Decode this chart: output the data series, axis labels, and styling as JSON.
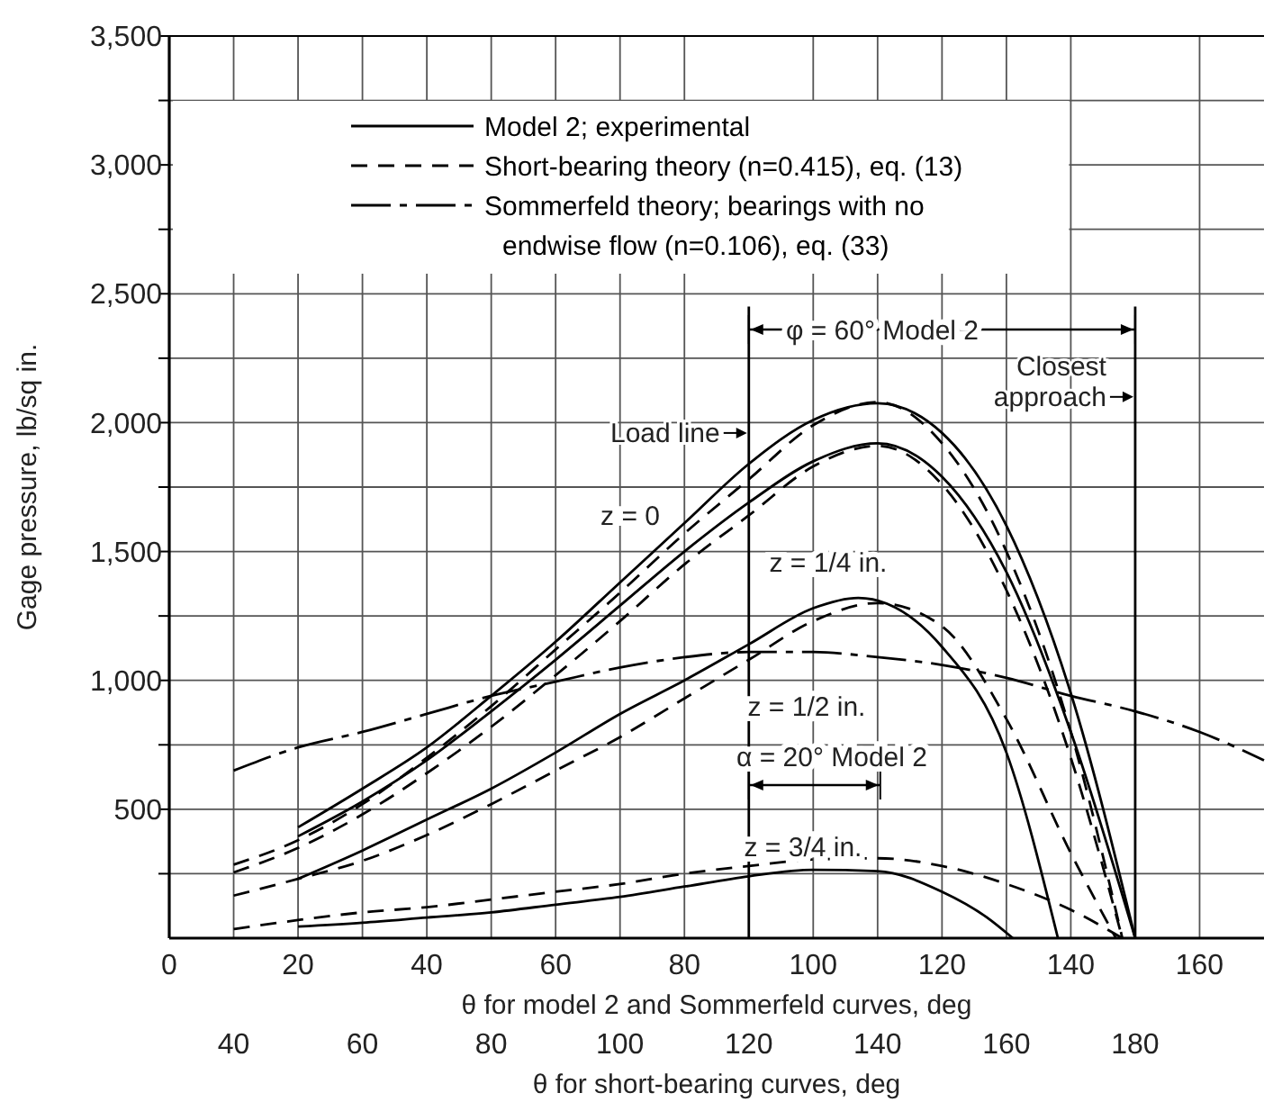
{
  "chart_data": {
    "type": "line",
    "xlabel": "θ for model 2 and Sommerfeld curves, deg",
    "x2label": "θ for short-bearing curves, deg",
    "ylabel": "Gage pressure, lb/sq in.",
    "xlim": [
      0,
      170
    ],
    "xticks": [
      0,
      {
        "value": 10,
        "label": null
      },
      20,
      {
        "value": 30,
        "label": null
      },
      40,
      {
        "value": 50,
        "label": null
      },
      60,
      {
        "value": 70,
        "label": null
      },
      80,
      {
        "value": 90,
        "label": null
      },
      100,
      {
        "value": 110,
        "label": null
      },
      120,
      {
        "value": 130,
        "label": null
      },
      140,
      {
        "value": 150,
        "label": null
      },
      160
    ],
    "x2lim": [
      30,
      200
    ],
    "x2ticks": [
      40,
      60,
      80,
      100,
      120,
      140,
      160,
      180
    ],
    "ylim": [
      0,
      3500
    ],
    "yticks": [
      {
        "value": 250,
        "label": null
      },
      500,
      {
        "value": 750,
        "label": null
      },
      {
        "value": 1000,
        "label": "1,000"
      },
      {
        "value": 1250,
        "label": null
      },
      {
        "value": 1500,
        "label": "1,500"
      },
      {
        "value": 1750,
        "label": null
      },
      {
        "value": 2000,
        "label": "2,000"
      },
      {
        "value": 2250,
        "label": null
      },
      {
        "value": 2500,
        "label": "2,500"
      },
      {
        "value": 2750,
        "label": null
      },
      {
        "value": 3000,
        "label": "3,000"
      },
      {
        "value": 3250,
        "label": null
      },
      {
        "value": 3500,
        "label": "3,500"
      }
    ],
    "grid": true,
    "legend": "top left",
    "marker": "none",
    "series": [
      {
        "name": "Model 2; experimental",
        "color": "#000000",
        "line_style": "solid",
        "x": [
          20,
          30,
          40,
          50,
          60,
          70,
          80,
          90,
          100,
          110,
          120,
          130,
          140,
          150
        ],
        "values": [
          430,
          580,
          740,
          940,
          1150,
          1380,
          1610,
          1840,
          2010,
          2075,
          1960,
          1600,
          950,
          0
        ]
      },
      {
        "color": "#000000",
        "line_style": "solid",
        "x": [
          20,
          30,
          40,
          50,
          60,
          70,
          80,
          90,
          100,
          110,
          120,
          130,
          140,
          150
        ],
        "values": [
          395,
          530,
          690,
          880,
          1080,
          1290,
          1500,
          1690,
          1850,
          1920,
          1790,
          1420,
          800,
          0
        ]
      },
      {
        "color": "#000000",
        "line_style": "solid",
        "x": [
          20,
          30,
          40,
          50,
          60,
          70,
          80,
          90,
          100,
          107,
          120,
          130,
          138
        ],
        "values": [
          230,
          340,
          460,
          580,
          720,
          870,
          1000,
          1140,
          1280,
          1320,
          1130,
          720,
          0
        ]
      },
      {
        "color": "#000000",
        "line_style": "solid",
        "x": [
          20,
          30,
          40,
          50,
          60,
          70,
          80,
          90,
          100,
          110,
          120,
          127,
          131
        ],
        "values": [
          45,
          60,
          80,
          100,
          130,
          160,
          200,
          240,
          265,
          260,
          180,
          80,
          0
        ]
      },
      {
        "name": "Short-bearing theory (n=0.415), eq. (13)",
        "color": "#000000",
        "line_style": "dashed",
        "x": [
          10,
          20,
          30,
          40,
          50,
          60,
          70,
          80,
          90,
          100,
          110,
          120,
          130,
          140,
          148
        ],
        "values": [
          285,
          380,
          520,
          700,
          900,
          1120,
          1340,
          1570,
          1780,
          1990,
          2080,
          1920,
          1500,
          800,
          0
        ]
      },
      {
        "color": "#000000",
        "line_style": "dashed",
        "x": [
          10,
          20,
          30,
          40,
          50,
          60,
          70,
          80,
          90,
          100,
          110,
          120,
          130,
          140,
          148
        ],
        "values": [
          255,
          350,
          480,
          640,
          820,
          1020,
          1230,
          1450,
          1640,
          1830,
          1910,
          1760,
          1350,
          700,
          0
        ]
      },
      {
        "color": "#000000",
        "line_style": "dashed",
        "x": [
          10,
          20,
          30,
          40,
          50,
          60,
          70,
          80,
          90,
          100,
          110,
          120,
          130,
          140,
          147
        ],
        "values": [
          165,
          230,
          300,
          400,
          520,
          650,
          780,
          930,
          1080,
          1230,
          1300,
          1210,
          850,
          330,
          0
        ]
      },
      {
        "color": "#000000",
        "line_style": "dashed",
        "x": [
          10,
          20,
          30,
          40,
          50,
          60,
          70,
          80,
          90,
          100,
          110,
          120,
          130,
          140,
          148
        ],
        "values": [
          35,
          70,
          100,
          120,
          150,
          180,
          210,
          250,
          280,
          305,
          310,
          280,
          210,
          110,
          0
        ]
      },
      {
        "name": "Sommerfeld theory; bearings with no endwise flow (n=0.106), eq. (33)",
        "color": "#000000",
        "line_style": "dashdot",
        "x": [
          10,
          20,
          30,
          40,
          50,
          60,
          70,
          80,
          90,
          100,
          110,
          120,
          130,
          140,
          150,
          160,
          170
        ],
        "values": [
          650,
          740,
          800,
          870,
          940,
          995,
          1050,
          1090,
          1110,
          1110,
          1090,
          1060,
          1010,
          940,
          880,
          800,
          690
        ]
      }
    ],
    "ref_lines": [
      {
        "axis": "x",
        "value": 90,
        "label": "Load line"
      },
      {
        "axis": "x",
        "value": 150,
        "label": "Closest approach"
      }
    ],
    "annotations": [
      "z = 0",
      "z = 1/4 in.",
      "z = 1/2 in.",
      "z = 3/4 in.",
      "φ = 60° Model 2",
      "α = 20° Model 2"
    ]
  }
}
